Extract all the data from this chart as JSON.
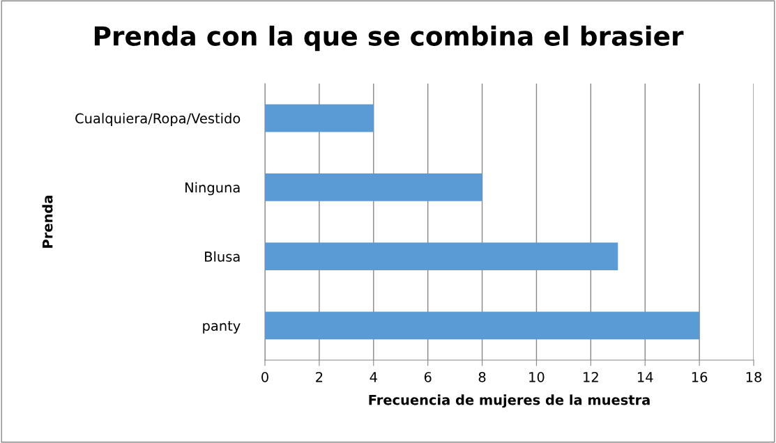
{
  "chart_data": {
    "type": "bar",
    "orientation": "horizontal",
    "title": "Prenda con la que se combina el brasier",
    "xlabel": "Frecuencia de mujeres de la muestra",
    "ylabel": "Prenda",
    "categories": [
      "Cualquiera/Ropa/Vestido",
      "Ninguna",
      "Blusa",
      "panty"
    ],
    "values": [
      4,
      8,
      13,
      16
    ],
    "color": "#5b9bd5",
    "xlim": [
      0,
      18
    ],
    "xticks": [
      0,
      2,
      4,
      6,
      8,
      10,
      12,
      14,
      16,
      18
    ],
    "grid": "x",
    "legend": false
  }
}
